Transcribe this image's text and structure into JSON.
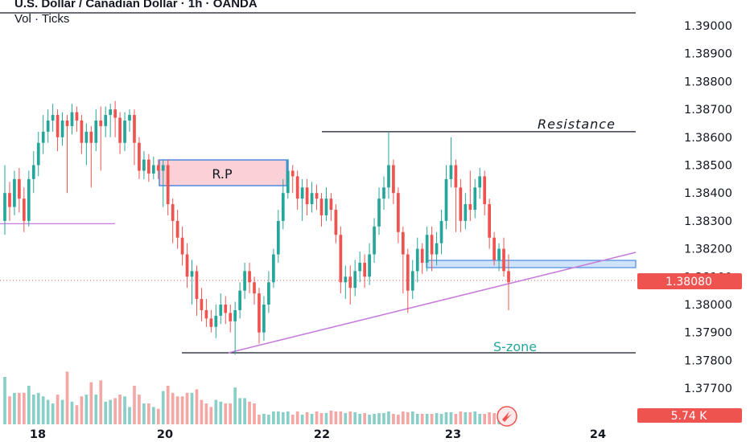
{
  "header": {
    "title": "U.S. Dollar / Canadian Dollar · 1h · OANDA",
    "volume_label": "Vol · Ticks"
  },
  "colors": {
    "up": "#26a69a",
    "down": "#ef5350",
    "vol_up": "#89cfc7",
    "vol_down": "#f4a8a6",
    "trendline": "#c77ddb",
    "zone_fill": "#cfe3fb",
    "zone_border": "#4a8ae0",
    "rp_fill": "#fbd0d6",
    "last_price": "#ef5350",
    "sline": "#26a69a"
  },
  "chart_data": {
    "type": "candlestick",
    "symbol": "U.S. Dollar / Canadian Dollar · 1h · OANDA",
    "y_axis": {
      "ticks": [
        "1.39000",
        "1.38900",
        "1.38800",
        "1.38700",
        "1.38600",
        "1.38500",
        "1.38400",
        "1.38300",
        "1.38200",
        "1.38100",
        "1.38000",
        "1.37900",
        "1.37800",
        "1.37700"
      ],
      "min": 1.3766,
      "max": 1.3904
    },
    "x_axis": {
      "ticks": [
        "18",
        "20",
        "22",
        "23",
        "24"
      ]
    },
    "last_price": "1.38080",
    "volume_last": "5.74 K",
    "annotations": {
      "rp": "R.P",
      "resistance": "Resistance",
      "szone": "S-zone"
    },
    "levels": {
      "resistance": 1.3862,
      "szone": 1.3782,
      "left_line": 1.3829,
      "support_zone_top": 1.3816,
      "support_zone_bottom": 1.3813,
      "rp_top": 1.3852,
      "rp_bottom": 1.3843
    },
    "trendline": {
      "from": [
        "20.6",
        1.3782
      ],
      "to": [
        "24.4",
        1.3818
      ]
    },
    "candles": [
      [
        1.383,
        1.384,
        1.385,
        1.3825
      ],
      [
        1.384,
        1.3835,
        1.3844,
        1.383
      ],
      [
        1.3835,
        1.3845,
        1.3848,
        1.3832
      ],
      [
        1.3845,
        1.3838,
        1.3849,
        1.3833
      ],
      [
        1.3838,
        1.383,
        1.3842,
        1.3826
      ],
      [
        1.383,
        1.3845,
        1.3848,
        1.3828
      ],
      [
        1.3845,
        1.385,
        1.3855,
        1.384
      ],
      [
        1.385,
        1.3858,
        1.3862,
        1.3846
      ],
      [
        1.3858,
        1.3862,
        1.3868,
        1.3854
      ],
      [
        1.3862,
        1.3866,
        1.387,
        1.3858
      ],
      [
        1.3866,
        1.3868,
        1.3872,
        1.3862
      ],
      [
        1.3868,
        1.386,
        1.387,
        1.3855
      ],
      [
        1.386,
        1.3866,
        1.3869,
        1.3857
      ],
      [
        1.3866,
        1.3864,
        1.3868,
        1.384
      ],
      [
        1.3864,
        1.3869,
        1.3872,
        1.3861
      ],
      [
        1.3869,
        1.3866,
        1.3871,
        1.3862
      ],
      [
        1.3866,
        1.3858,
        1.3868,
        1.3854
      ],
      [
        1.3858,
        1.3862,
        1.3865,
        1.385
      ],
      [
        1.3862,
        1.3858,
        1.3864,
        1.3842
      ],
      [
        1.3858,
        1.3866,
        1.387,
        1.3855
      ],
      [
        1.3866,
        1.3864,
        1.3871,
        1.3848
      ],
      [
        1.3864,
        1.3868,
        1.3871,
        1.386
      ],
      [
        1.3868,
        1.387,
        1.3872,
        1.386
      ],
      [
        1.387,
        1.3867,
        1.3873,
        1.386
      ],
      [
        1.3867,
        1.3858,
        1.3869,
        1.3854
      ],
      [
        1.3858,
        1.3866,
        1.3869,
        1.3855
      ],
      [
        1.3866,
        1.3868,
        1.387,
        1.3862
      ],
      [
        1.3868,
        1.3858,
        1.387,
        1.385
      ],
      [
        1.3858,
        1.3848,
        1.386,
        1.3845
      ],
      [
        1.3848,
        1.3852,
        1.3855,
        1.3845
      ],
      [
        1.3852,
        1.3847,
        1.3854,
        1.3844
      ],
      [
        1.3847,
        1.385,
        1.3853,
        1.3845
      ],
      [
        1.385,
        1.3848,
        1.3852,
        1.3845
      ],
      [
        1.3848,
        1.385,
        1.3852,
        1.3835
      ],
      [
        1.385,
        1.3836,
        1.3852,
        1.3832
      ],
      [
        1.3836,
        1.383,
        1.3838,
        1.3822
      ],
      [
        1.383,
        1.3824,
        1.3834,
        1.382
      ],
      [
        1.3824,
        1.3818,
        1.3828,
        1.3814
      ],
      [
        1.3818,
        1.381,
        1.3822,
        1.3806
      ],
      [
        1.381,
        1.3812,
        1.3816,
        1.38
      ],
      [
        1.3812,
        1.3802,
        1.3814,
        1.3796
      ],
      [
        1.3802,
        1.3798,
        1.3806,
        1.3794
      ],
      [
        1.3798,
        1.3795,
        1.3802,
        1.3792
      ],
      [
        1.3795,
        1.3792,
        1.3798,
        1.379
      ],
      [
        1.3792,
        1.3796,
        1.38,
        1.3788
      ],
      [
        1.3796,
        1.38,
        1.3804,
        1.3793
      ],
      [
        1.38,
        1.3797,
        1.3803,
        1.3793
      ],
      [
        1.3797,
        1.3794,
        1.38,
        1.379
      ],
      [
        1.3794,
        1.3798,
        1.3801,
        1.3782
      ],
      [
        1.3798,
        1.3805,
        1.3808,
        1.3795
      ],
      [
        1.3805,
        1.3812,
        1.3815,
        1.3802
      ],
      [
        1.3812,
        1.3808,
        1.3815,
        1.3804
      ],
      [
        1.3808,
        1.3804,
        1.381,
        1.38
      ],
      [
        1.3804,
        1.379,
        1.3806,
        1.3786
      ],
      [
        1.379,
        1.38,
        1.3803,
        1.3787
      ],
      [
        1.38,
        1.3808,
        1.3812,
        1.3797
      ],
      [
        1.3808,
        1.3818,
        1.382,
        1.3806
      ],
      [
        1.3818,
        1.383,
        1.3834,
        1.3815
      ],
      [
        1.383,
        1.384,
        1.3845,
        1.3827
      ],
      [
        1.384,
        1.3848,
        1.3852,
        1.3838
      ],
      [
        1.3848,
        1.3846,
        1.385,
        1.384
      ],
      [
        1.3846,
        1.3838,
        1.3848,
        1.3834
      ],
      [
        1.3838,
        1.3842,
        1.3845,
        1.383
      ],
      [
        1.3842,
        1.3836,
        1.3845,
        1.3832
      ],
      [
        1.3836,
        1.384,
        1.3844,
        1.3833
      ],
      [
        1.384,
        1.3838,
        1.3843,
        1.3834
      ],
      [
        1.3838,
        1.3832,
        1.384,
        1.3828
      ],
      [
        1.3832,
        1.3838,
        1.3842,
        1.383
      ],
      [
        1.3838,
        1.3834,
        1.384,
        1.383
      ],
      [
        1.3834,
        1.3825,
        1.3836,
        1.3822
      ],
      [
        1.3825,
        1.3808,
        1.3828,
        1.3804
      ],
      [
        1.3808,
        1.381,
        1.3814,
        1.3802
      ],
      [
        1.381,
        1.3806,
        1.3814,
        1.38
      ],
      [
        1.3806,
        1.3812,
        1.3816,
        1.3803
      ],
      [
        1.3812,
        1.3815,
        1.3819,
        1.3808
      ],
      [
        1.3815,
        1.381,
        1.3818,
        1.3806
      ],
      [
        1.381,
        1.3818,
        1.3822,
        1.3807
      ],
      [
        1.3818,
        1.3828,
        1.3831,
        1.3815
      ],
      [
        1.3828,
        1.3838,
        1.3842,
        1.3825
      ],
      [
        1.3838,
        1.3842,
        1.3846,
        1.3834
      ],
      [
        1.3842,
        1.385,
        1.3862,
        1.3838
      ],
      [
        1.385,
        1.384,
        1.3852,
        1.3836
      ],
      [
        1.384,
        1.3826,
        1.3842,
        1.3822
      ],
      [
        1.3826,
        1.3818,
        1.3828,
        1.3804
      ],
      [
        1.3818,
        1.3805,
        1.382,
        1.3797
      ],
      [
        1.3805,
        1.3812,
        1.3816,
        1.3802
      ],
      [
        1.3812,
        1.382,
        1.3824,
        1.3808
      ],
      [
        1.382,
        1.3815,
        1.3822,
        1.3811
      ],
      [
        1.3815,
        1.3825,
        1.3828,
        1.3812
      ],
      [
        1.3825,
        1.3818,
        1.3828,
        1.3812
      ],
      [
        1.3818,
        1.3822,
        1.3826,
        1.3814
      ],
      [
        1.3822,
        1.383,
        1.3834,
        1.3818
      ],
      [
        1.383,
        1.3845,
        1.385,
        1.3827
      ],
      [
        1.3845,
        1.385,
        1.386,
        1.3842
      ],
      [
        1.385,
        1.3842,
        1.3852,
        1.3826
      ],
      [
        1.3842,
        1.383,
        1.3845,
        1.3826
      ],
      [
        1.383,
        1.3836,
        1.384,
        1.3827
      ],
      [
        1.3836,
        1.3834,
        1.3848,
        1.383
      ],
      [
        1.3834,
        1.3842,
        1.3845,
        1.3831
      ],
      [
        1.3842,
        1.3846,
        1.3849,
        1.3838
      ],
      [
        1.3846,
        1.3836,
        1.3848,
        1.3832
      ],
      [
        1.3836,
        1.3824,
        1.3838,
        1.382
      ],
      [
        1.3824,
        1.3816,
        1.3826,
        1.3814
      ],
      [
        1.3816,
        1.382,
        1.3822,
        1.3812
      ],
      [
        1.382,
        1.3812,
        1.3824,
        1.381
      ],
      [
        1.3812,
        1.3808,
        1.3818,
        1.3798
      ]
    ]
  }
}
